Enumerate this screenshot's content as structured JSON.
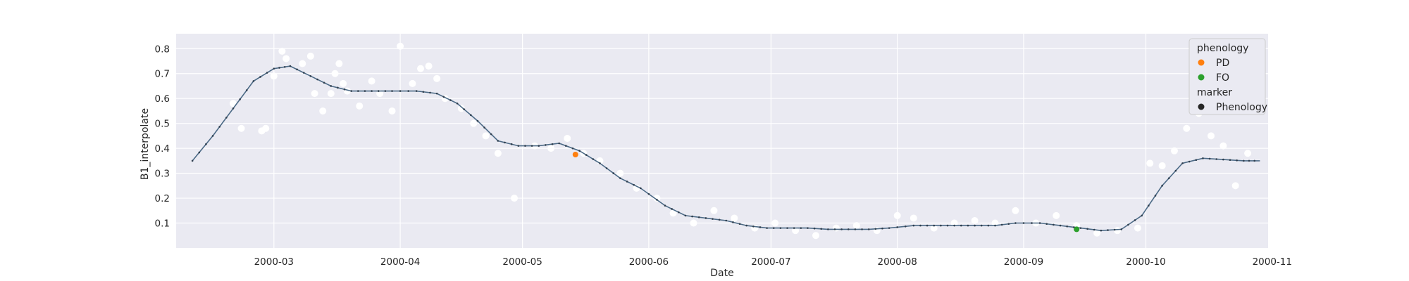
{
  "chart_data": {
    "type": "scatter",
    "xlabel": "Date",
    "ylabel": "B1_interpolate",
    "x_ticks": [
      "2000-03-01",
      "2000-04-01",
      "2000-05-01",
      "2000-06-01",
      "2000-07-01",
      "2000-08-01",
      "2000-09-01",
      "2000-10-01",
      "2000-11-01"
    ],
    "x_tick_labels": [
      "2000-03",
      "2000-04",
      "2000-05",
      "2000-06",
      "2000-07",
      "2000-08",
      "2000-09",
      "2000-10",
      "2000-11"
    ],
    "y_ticks": [
      0.1,
      0.2,
      0.3,
      0.4,
      0.5,
      0.6,
      0.7,
      0.8
    ],
    "y_tick_labels": [
      "0.1",
      "0.2",
      "0.3",
      "0.4",
      "0.5",
      "0.6",
      "0.7",
      "0.8"
    ],
    "xlim": [
      "2000-02-06",
      "2000-10-31"
    ],
    "ylim": [
      0.0,
      0.86
    ],
    "grid": true,
    "background": "#eaeaf2",
    "legend": {
      "placement": "top-right",
      "entries": [
        {
          "kind": "title",
          "label": "phenology"
        },
        {
          "kind": "marker",
          "label": "PD",
          "color": "#ff7f0e"
        },
        {
          "kind": "marker",
          "label": "FO",
          "color": "#2ca02c"
        },
        {
          "kind": "title",
          "label": "marker"
        },
        {
          "kind": "marker",
          "label": "Phenology",
          "color": "#262626"
        }
      ]
    },
    "series": [
      {
        "kind": "raw-points",
        "color": "#ffffff",
        "x": [
          "2000-02-20",
          "2000-02-22",
          "2000-02-27",
          "2000-02-28",
          "2000-03-01",
          "2000-03-03",
          "2000-03-04",
          "2000-03-08",
          "2000-03-10",
          "2000-03-11",
          "2000-03-13",
          "2000-03-15",
          "2000-03-16",
          "2000-03-17",
          "2000-03-18",
          "2000-03-19",
          "2000-03-22",
          "2000-03-25",
          "2000-03-27",
          "2000-03-30",
          "2000-04-01",
          "2000-04-04",
          "2000-04-06",
          "2000-04-08",
          "2000-04-10",
          "2000-04-12",
          "2000-04-16",
          "2000-04-19",
          "2000-04-22",
          "2000-04-25",
          "2000-04-29",
          "2000-05-04",
          "2000-05-08",
          "2000-05-12",
          "2000-05-16",
          "2000-05-20",
          "2000-05-25",
          "2000-05-29",
          "2000-06-03",
          "2000-06-07",
          "2000-06-12",
          "2000-06-17",
          "2000-06-22",
          "2000-06-27",
          "2000-07-02",
          "2000-07-07",
          "2000-07-12",
          "2000-07-17",
          "2000-07-22",
          "2000-07-27",
          "2000-08-01",
          "2000-08-05",
          "2000-08-10",
          "2000-08-15",
          "2000-08-20",
          "2000-08-25",
          "2000-08-30",
          "2000-09-04",
          "2000-09-09",
          "2000-09-14",
          "2000-09-19",
          "2000-09-24",
          "2000-09-29",
          "2000-10-02",
          "2000-10-05",
          "2000-10-08",
          "2000-10-11",
          "2000-10-14",
          "2000-10-17",
          "2000-10-20",
          "2000-10-23",
          "2000-10-26"
        ],
        "y": [
          0.58,
          0.48,
          0.47,
          0.48,
          0.69,
          0.79,
          0.76,
          0.74,
          0.77,
          0.62,
          0.55,
          0.62,
          0.7,
          0.74,
          0.66,
          0.63,
          0.57,
          0.67,
          0.62,
          0.55,
          0.81,
          0.66,
          0.72,
          0.73,
          0.68,
          0.6,
          0.56,
          0.5,
          0.45,
          0.38,
          0.2,
          0.41,
          0.4,
          0.44,
          0.38,
          0.35,
          0.3,
          0.24,
          0.2,
          0.14,
          0.1,
          0.15,
          0.12,
          0.08,
          0.1,
          0.07,
          0.05,
          0.08,
          0.09,
          0.07,
          0.13,
          0.12,
          0.08,
          0.1,
          0.11,
          0.1,
          0.15,
          0.1,
          0.13,
          0.09,
          0.06,
          0.07,
          0.08,
          0.34,
          0.33,
          0.39,
          0.48,
          0.54,
          0.45,
          0.41,
          0.25,
          0.38
        ]
      },
      {
        "kind": "interpolated-line",
        "color": "#4c6a86",
        "x": [
          "2000-02-10",
          "2000-02-15",
          "2000-02-20",
          "2000-02-25",
          "2000-03-01",
          "2000-03-05",
          "2000-03-10",
          "2000-03-15",
          "2000-03-20",
          "2000-03-25",
          "2000-03-30",
          "2000-04-05",
          "2000-04-10",
          "2000-04-15",
          "2000-04-20",
          "2000-04-25",
          "2000-04-30",
          "2000-05-05",
          "2000-05-10",
          "2000-05-15",
          "2000-05-20",
          "2000-05-25",
          "2000-05-30",
          "2000-06-05",
          "2000-06-10",
          "2000-06-15",
          "2000-06-20",
          "2000-06-25",
          "2000-06-30",
          "2000-07-05",
          "2000-07-10",
          "2000-07-15",
          "2000-07-20",
          "2000-07-25",
          "2000-07-30",
          "2000-08-05",
          "2000-08-10",
          "2000-08-15",
          "2000-08-20",
          "2000-08-25",
          "2000-08-30",
          "2000-09-05",
          "2000-09-10",
          "2000-09-15",
          "2000-09-20",
          "2000-09-25",
          "2000-09-30",
          "2000-10-05",
          "2000-10-10",
          "2000-10-15",
          "2000-10-20",
          "2000-10-25",
          "2000-10-29"
        ],
        "y": [
          0.35,
          0.45,
          0.56,
          0.67,
          0.72,
          0.73,
          0.69,
          0.65,
          0.63,
          0.63,
          0.63,
          0.63,
          0.62,
          0.58,
          0.51,
          0.43,
          0.41,
          0.41,
          0.42,
          0.39,
          0.34,
          0.28,
          0.24,
          0.17,
          0.13,
          0.12,
          0.11,
          0.09,
          0.08,
          0.08,
          0.08,
          0.075,
          0.075,
          0.075,
          0.08,
          0.09,
          0.09,
          0.09,
          0.09,
          0.09,
          0.1,
          0.1,
          0.09,
          0.08,
          0.07,
          0.075,
          0.13,
          0.25,
          0.34,
          0.36,
          0.355,
          0.35,
          0.35
        ]
      },
      {
        "kind": "phenology",
        "x": [
          "2000-05-14",
          "2000-09-14"
        ],
        "y": [
          0.375,
          0.075
        ],
        "labels": [
          "PD",
          "FO"
        ],
        "colors": [
          "#ff7f0e",
          "#2ca02c"
        ]
      }
    ]
  }
}
